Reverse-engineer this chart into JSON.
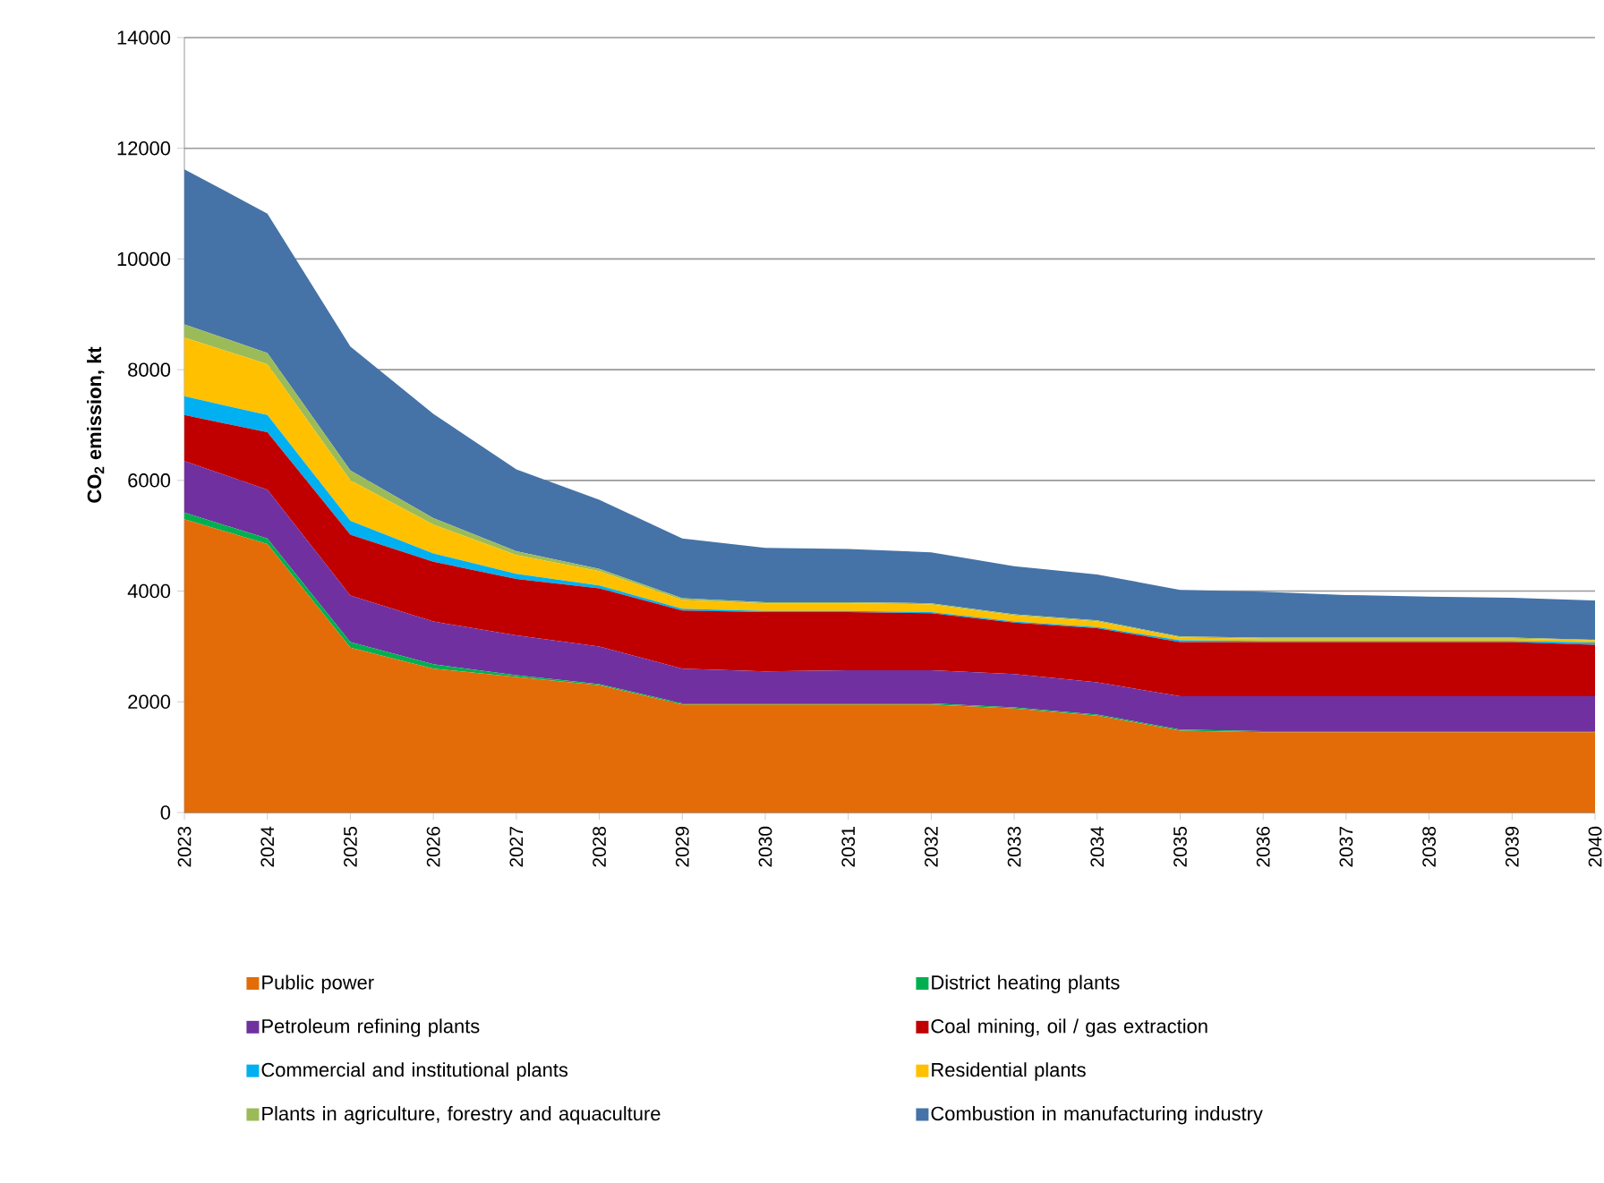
{
  "chart_data": {
    "type": "area",
    "stacked": true,
    "ylabel": "CO$_{2}$ emission, kt",
    "categories": [
      "2023",
      "2024",
      "2025",
      "2026",
      "2027",
      "2028",
      "2029",
      "2030",
      "2031",
      "2032",
      "2033",
      "2034",
      "2035",
      "2036",
      "2037",
      "2038",
      "2039",
      "2040"
    ],
    "ylim": [
      0,
      14000
    ],
    "yticks": [
      0,
      2000,
      4000,
      6000,
      8000,
      10000,
      12000,
      14000
    ],
    "grid": "y",
    "legend": "bottom",
    "series": [
      {
        "name": "Public power",
        "color": "#e36c09",
        "values": [
          5300,
          4850,
          2980,
          2600,
          2450,
          2300,
          1950,
          1950,
          1950,
          1950,
          1880,
          1750,
          1480,
          1450,
          1450,
          1450,
          1450,
          1450
        ]
      },
      {
        "name": "District heating plants",
        "color": "#00b050",
        "values": [
          120,
          100,
          100,
          80,
          30,
          20,
          20,
          20,
          20,
          20,
          20,
          20,
          20,
          20,
          20,
          20,
          20,
          20
        ]
      },
      {
        "name": "Petroleum refining plants",
        "color": "#7030a0",
        "values": [
          930,
          880,
          840,
          770,
          720,
          680,
          630,
          580,
          600,
          600,
          600,
          580,
          600,
          630,
          630,
          630,
          630,
          630
        ]
      },
      {
        "name": "Coal mining, oil / gas extraction",
        "color": "#c00000",
        "values": [
          830,
          1040,
          1100,
          1080,
          1020,
          1050,
          1050,
          1070,
          1050,
          1030,
          930,
          980,
          980,
          980,
          980,
          980,
          980,
          930
        ]
      },
      {
        "name": "Commercial and institutional plants",
        "color": "#00b0f0",
        "values": [
          340,
          310,
          250,
          150,
          90,
          50,
          30,
          20,
          20,
          20,
          20,
          20,
          30,
          20,
          20,
          20,
          20,
          40
        ]
      },
      {
        "name": "Residential plants",
        "color": "#ffc000",
        "values": [
          1060,
          920,
          730,
          520,
          340,
          260,
          160,
          140,
          140,
          140,
          110,
          100,
          50,
          40,
          40,
          40,
          40,
          40
        ]
      },
      {
        "name": "Plants in agriculture, forestry and aquaculture",
        "color": "#9bbb59",
        "values": [
          240,
          200,
          180,
          120,
          70,
          40,
          30,
          20,
          20,
          20,
          20,
          20,
          20,
          20,
          20,
          20,
          20,
          10
        ]
      },
      {
        "name": "Combustion in manufacturing industry",
        "color": "#4573a7",
        "values": [
          2800,
          2520,
          2240,
          1880,
          1480,
          1250,
          1080,
          980,
          960,
          920,
          870,
          830,
          840,
          830,
          770,
          740,
          720,
          710
        ]
      }
    ]
  }
}
